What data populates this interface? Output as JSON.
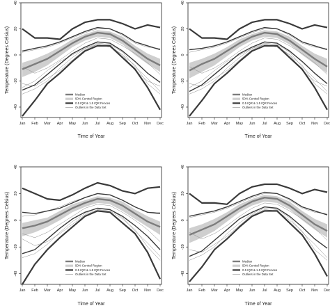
{
  "figure": {
    "xlabel": "Time of Year",
    "ylabel": "Temperature (Degrees Celsius)",
    "months": [
      "Jan",
      "Feb",
      "Mar",
      "Apr",
      "May",
      "Jun",
      "Jul",
      "Aug",
      "Sep",
      "Oct",
      "Nov",
      "Dec"
    ],
    "yticks": [
      -40,
      -20,
      0,
      20,
      40
    ],
    "ylim": [
      -48,
      40
    ],
    "legend": {
      "median": "Median",
      "central": "50% Central Region",
      "fences": "0.5 IQR & 1.5 IQR Fences",
      "outliers": "Outliers in the Data Set"
    },
    "colors": {
      "fence": "#3a3a3a",
      "median": "#7d7d7d",
      "central": "#cfcfcf",
      "curve": "#8a8a8a"
    }
  },
  "chart_data": [
    {
      "type": "line",
      "xlabel": "Time of Year",
      "ylabel": "Temperature (Degrees Celsius)",
      "categories": [
        "Jan",
        "Feb",
        "Mar",
        "Apr",
        "May",
        "Jun",
        "Jul",
        "Aug",
        "Sep",
        "Oct",
        "Nov",
        "Dec"
      ],
      "ylim": [
        -48,
        40
      ],
      "upper_outer": [
        20,
        13,
        13,
        12,
        20,
        25,
        27,
        27,
        24,
        20,
        23,
        21
      ],
      "upper_inner": [
        3,
        5,
        7,
        10,
        14,
        18,
        21,
        20,
        16,
        10,
        7,
        4
      ],
      "median": [
        -11,
        -7,
        -3,
        3,
        9,
        14,
        17,
        16,
        11,
        4,
        -3,
        -8
      ],
      "central_upper": [
        -6,
        -3,
        1,
        6,
        12,
        16,
        19,
        18,
        14,
        7,
        1,
        -3
      ],
      "central_lower": [
        -17,
        -13,
        -8,
        -1,
        6,
        11,
        14,
        13,
        8,
        0,
        -7,
        -13
      ],
      "lower_inner": [
        -27,
        -23,
        -15,
        -7,
        1,
        6,
        10,
        9,
        3,
        -5,
        -14,
        -21
      ],
      "lower_outer": [
        -47,
        -35,
        -22,
        -14,
        -5,
        3,
        7,
        7,
        -2,
        -11,
        -25,
        -42
      ],
      "outliers": [
        [
          -30,
          -26,
          -20,
          -10,
          -2,
          5,
          9,
          8,
          2,
          -9,
          -18,
          -28
        ],
        [
          2,
          4,
          6,
          9,
          13,
          17,
          20,
          20,
          15,
          9,
          6,
          5
        ],
        [
          -22,
          -24,
          -18,
          -12,
          -4,
          4,
          8,
          7,
          0,
          -8,
          -22,
          -30
        ],
        [
          -9,
          -14,
          -10,
          -4,
          3,
          9,
          13,
          12,
          7,
          1,
          -6,
          -15
        ],
        [
          -25,
          -20,
          -12,
          -5,
          0,
          5,
          8,
          6,
          0,
          -12,
          -20,
          -24
        ]
      ]
    },
    {
      "type": "line",
      "xlabel": "Time of Year",
      "ylabel": "Temperature (Degrees Celsius)",
      "categories": [
        "Jan",
        "Feb",
        "Mar",
        "Apr",
        "May",
        "Jun",
        "Jul",
        "Aug",
        "Sep",
        "Oct",
        "Nov",
        "Dec"
      ],
      "ylim": [
        -48,
        40
      ],
      "upper_outer": [
        20,
        13,
        13,
        12,
        20,
        25,
        27,
        27,
        24,
        20,
        23,
        21
      ],
      "upper_inner": [
        4,
        5,
        7,
        10,
        14,
        18,
        21,
        20,
        16,
        10,
        7,
        4
      ],
      "median": [
        -12,
        -7,
        -3,
        3,
        9,
        14,
        17,
        16,
        11,
        4,
        -3,
        -9
      ],
      "central_upper": [
        -6,
        -3,
        1,
        6,
        12,
        16,
        19,
        18,
        14,
        7,
        1,
        -3
      ],
      "central_lower": [
        -18,
        -13,
        -8,
        -1,
        6,
        11,
        14,
        13,
        8,
        0,
        -7,
        -14
      ],
      "lower_inner": [
        -28,
        -23,
        -15,
        -7,
        1,
        6,
        10,
        9,
        3,
        -5,
        -14,
        -22
      ],
      "lower_outer": [
        -47,
        -35,
        -22,
        -14,
        -5,
        3,
        7,
        7,
        -2,
        -11,
        -25,
        -42
      ],
      "outliers": [
        [
          -30,
          -26,
          -20,
          -10,
          -2,
          5,
          9,
          8,
          2,
          -9,
          -18,
          -28
        ],
        [
          2,
          4,
          6,
          9,
          13,
          17,
          20,
          20,
          15,
          9,
          6,
          5
        ],
        [
          -22,
          -24,
          -18,
          -12,
          -4,
          4,
          8,
          7,
          0,
          -8,
          -22,
          -30
        ],
        [
          -9,
          -14,
          -10,
          -4,
          3,
          9,
          13,
          12,
          7,
          1,
          -6,
          -15
        ],
        [
          -25,
          -20,
          -12,
          -5,
          0,
          5,
          8,
          6,
          0,
          -12,
          -20,
          -24
        ]
      ]
    },
    {
      "type": "line",
      "xlabel": "Time of Year",
      "ylabel": "Temperature (Degrees Celsius)",
      "categories": [
        "Jan",
        "Feb",
        "Mar",
        "Apr",
        "May",
        "Jun",
        "Jul",
        "Aug",
        "Sep",
        "Oct",
        "Nov",
        "Dec"
      ],
      "ylim": [
        -48,
        40
      ],
      "upper_outer": [
        24,
        20,
        16,
        15,
        19,
        24,
        28,
        26,
        22,
        20,
        24,
        25
      ],
      "upper_inner": [
        6,
        5,
        7,
        9,
        13,
        17,
        20,
        19,
        15,
        10,
        6,
        5
      ],
      "median": [
        -6,
        -4,
        -1,
        4,
        9,
        13,
        16,
        15,
        11,
        5,
        -1,
        -5
      ],
      "central_upper": [
        -2,
        0,
        2,
        7,
        12,
        15,
        18,
        17,
        14,
        8,
        3,
        -1
      ],
      "central_lower": [
        -12,
        -9,
        -5,
        0,
        6,
        10,
        13,
        12,
        7,
        1,
        -5,
        -11
      ],
      "lower_inner": [
        -25,
        -22,
        -14,
        -6,
        1,
        6,
        9,
        8,
        3,
        -4,
        -12,
        -22
      ],
      "lower_outer": [
        -48,
        -33,
        -22,
        -13,
        -5,
        3,
        7,
        6,
        -2,
        -10,
        -24,
        -44
      ],
      "outliers": [
        [
          -28,
          -25,
          -18,
          -9,
          -1,
          5,
          9,
          8,
          2,
          -8,
          -17,
          -27
        ],
        [
          3,
          4,
          7,
          10,
          14,
          17,
          20,
          19,
          15,
          10,
          6,
          6
        ],
        [
          -14,
          -19,
          -16,
          -10,
          -3,
          4,
          8,
          7,
          1,
          -7,
          -20,
          -30
        ],
        [
          -10,
          -13,
          -9,
          -3,
          3,
          9,
          12,
          11,
          6,
          0,
          -7,
          -16
        ]
      ]
    },
    {
      "type": "line",
      "xlabel": "Time of Year",
      "ylabel": "Temperature (Degrees Celsius)",
      "categories": [
        "Jan",
        "Feb",
        "Mar",
        "Apr",
        "May",
        "Jun",
        "Jul",
        "Aug",
        "Sep",
        "Oct",
        "Nov",
        "Dec"
      ],
      "ylim": [
        -48,
        40
      ],
      "upper_outer": [
        20,
        13,
        13,
        12,
        20,
        25,
        27,
        27,
        24,
        20,
        23,
        21
      ],
      "upper_inner": [
        3,
        5,
        7,
        10,
        14,
        18,
        21,
        20,
        16,
        10,
        7,
        4
      ],
      "median": [
        -11,
        -7,
        -3,
        3,
        9,
        14,
        17,
        16,
        11,
        4,
        -3,
        -8
      ],
      "central_upper": [
        -6,
        -3,
        1,
        6,
        12,
        16,
        19,
        18,
        14,
        7,
        1,
        -3
      ],
      "central_lower": [
        -17,
        -13,
        -8,
        -1,
        6,
        11,
        14,
        13,
        8,
        0,
        -7,
        -13
      ],
      "lower_inner": [
        -27,
        -23,
        -15,
        -7,
        1,
        6,
        10,
        9,
        3,
        -5,
        -14,
        -21
      ],
      "lower_outer": [
        -46,
        -35,
        -22,
        -14,
        -5,
        3,
        7,
        7,
        -2,
        -11,
        -25,
        -42
      ],
      "outliers": [
        [
          -30,
          -26,
          -20,
          -10,
          -2,
          5,
          9,
          8,
          2,
          -9,
          -18,
          -28
        ],
        [
          2,
          4,
          6,
          9,
          13,
          17,
          20,
          20,
          15,
          9,
          6,
          5
        ],
        [
          -22,
          -24,
          -18,
          -12,
          -4,
          4,
          8,
          7,
          0,
          -8,
          -22,
          -30
        ],
        [
          -9,
          -14,
          -10,
          -4,
          3,
          9,
          13,
          12,
          7,
          1,
          -6,
          -15
        ]
      ]
    }
  ]
}
